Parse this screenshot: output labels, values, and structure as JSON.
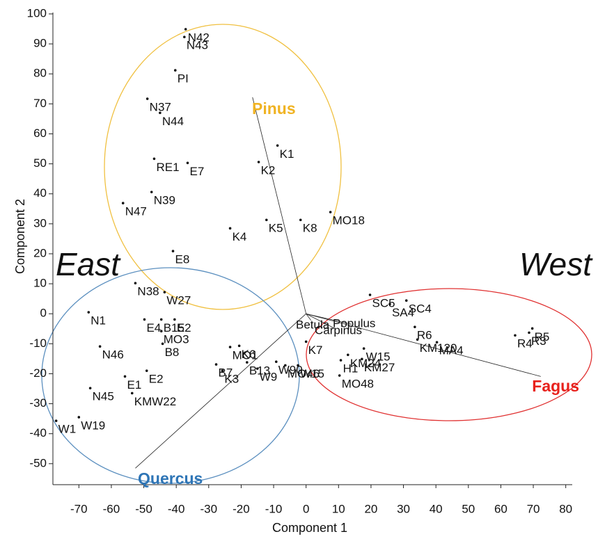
{
  "chart_data": {
    "type": "scatter",
    "x_label": "Component 1",
    "y_label": "Component 2",
    "xlim": [
      -78,
      82
    ],
    "ylim": [
      -57,
      100
    ],
    "xticks": [
      -70,
      -60,
      -50,
      -40,
      -30,
      -20,
      -10,
      0,
      10,
      20,
      30,
      40,
      50,
      60,
      70,
      80
    ],
    "yticks": [
      100,
      90,
      80,
      70,
      60,
      50,
      40,
      30,
      20,
      10,
      0,
      -10,
      -20,
      -30,
      -40,
      -50
    ],
    "color": "#111111",
    "point_labels": [
      "N42",
      "N43",
      "PI",
      "N37",
      "N44",
      "RE1",
      "E7",
      "N39",
      "N47",
      "K1",
      "K2",
      "K4",
      "K5",
      "K8",
      "MO18",
      "E8",
      "N38",
      "W27",
      "N1",
      "E4",
      "B15",
      "E2",
      "MO3",
      "B8",
      "N46",
      "E1",
      "E2",
      "MO1",
      "K6",
      "B7",
      "K3",
      "B13",
      "W9",
      "W90",
      "MO46",
      "W15",
      "K7",
      "N45",
      "KMW22",
      "W1",
      "W19",
      "SC5",
      "SA4",
      "SC4",
      "R6",
      "KM120",
      "MA4",
      "W15",
      "KM24",
      "KM27",
      "H1",
      "MO48",
      "R3",
      "R4",
      "R5"
    ],
    "x": [
      -37.1,
      -37.5,
      -40.3,
      -48.9,
      -45,
      -46.8,
      -36.5,
      -47.6,
      -56.4,
      -8.8,
      -14.6,
      -23.4,
      -12.2,
      -1.7,
      7.5,
      -41,
      -52.6,
      -43.6,
      -67,
      -49.8,
      -44.6,
      -40.5,
      -44.6,
      -44.2,
      -63.5,
      -55.8,
      -49.1,
      -23.4,
      -20.6,
      -27.7,
      -25.8,
      -18.2,
      -15,
      -9.2,
      -6.4,
      -2.5,
      0,
      -66.5,
      -53.6,
      -77,
      -70,
      19.7,
      25.8,
      30.9,
      33.5,
      34.3,
      40.3,
      17.8,
      12.9,
      17.2,
      10.7,
      10.3,
      68.7,
      64.4,
      69.7
    ],
    "values": [
      94.9,
      92.3,
      81.2,
      71.7,
      67,
      51.7,
      50.3,
      40.6,
      36.9,
      56.1,
      50.6,
      28.5,
      31.3,
      31.3,
      33.9,
      20.9,
      10.2,
      7.2,
      0.5,
      -1.9,
      -1.9,
      -1.9,
      -5.8,
      -10,
      -10.9,
      -20.9,
      -19,
      -11.1,
      -10.7,
      -16.9,
      -19,
      -16.2,
      -18.3,
      -16,
      -17.2,
      -17.2,
      -9.3,
      -24.8,
      -26.5,
      -35.7,
      -34.5,
      6.3,
      3.2,
      4.4,
      -4.4,
      -8.6,
      -9.5,
      -11.6,
      -13.7,
      -15.1,
      -15.5,
      -20.6,
      -6.3,
      -7.2,
      -4.9
    ],
    "vectors": [
      {
        "name": "Pinus",
        "x": -16.5,
        "y": 72.2
      },
      {
        "name": "Fagus",
        "x": 72.3,
        "y": -20.9
      },
      {
        "name": "Quercus",
        "x": -52.6,
        "y": -51.5
      },
      {
        "name": "Betula",
        "x": 1.5,
        "y": -2.2
      },
      {
        "name": "Populus",
        "x": 14,
        "y": -3.5
      },
      {
        "name": "Carpinus",
        "x": 9,
        "y": -5
      }
    ],
    "groups": [
      {
        "name": "Pinus",
        "color": "#f0b323"
      },
      {
        "name": "Quercus",
        "color": "#2e75b6"
      },
      {
        "name": "Fagus",
        "color": "#e8211c"
      }
    ],
    "annotations": [
      "East",
      "West"
    ]
  }
}
